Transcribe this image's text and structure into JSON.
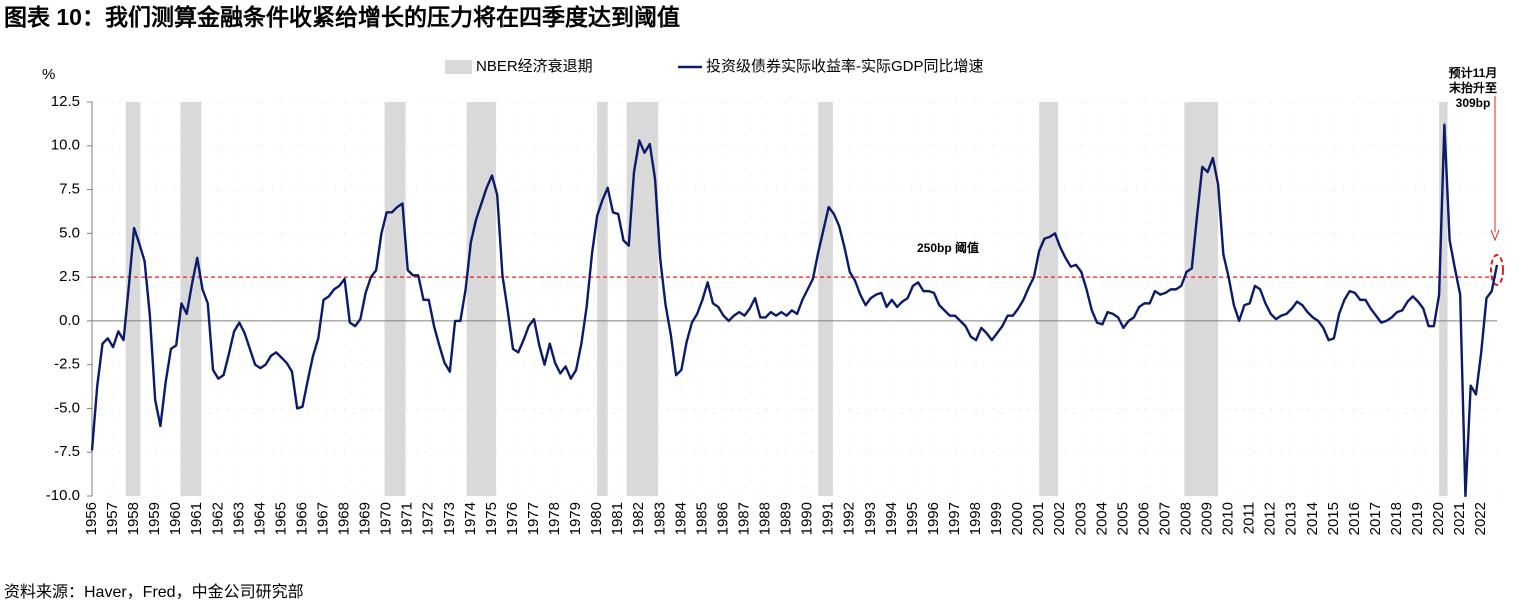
{
  "chart_data": {
    "type": "line",
    "title": "图表 10：我们测算金融条件收紧给增长的压力将在四季度达到阈值",
    "source": "资料来源：Haver，Fred，中金公司研究部",
    "y_unit": "%",
    "xlim": [
      1956,
      2022.75
    ],
    "ylim": [
      -10,
      12.5
    ],
    "yticks": [
      12.5,
      {
        "value": 10,
        "label": "10.0"
      },
      7.5,
      {
        "value": 5,
        "label": "5.0"
      },
      2.5,
      {
        "value": 0,
        "label": "0.0"
      },
      -2.5,
      {
        "value": -5,
        "label": "-5.0"
      },
      -7.5,
      {
        "value": -10,
        "label": "-10.0"
      }
    ],
    "xticks": [
      1956,
      1957,
      1958,
      1959,
      1960,
      1961,
      1962,
      1963,
      1964,
      1965,
      1966,
      1967,
      1968,
      1969,
      1970,
      1971,
      1972,
      1973,
      1974,
      1975,
      1976,
      1977,
      1978,
      1979,
      1980,
      1981,
      1982,
      1983,
      1984,
      1985,
      1986,
      1987,
      1988,
      1989,
      1990,
      1991,
      1992,
      1993,
      1994,
      1995,
      1996,
      1997,
      1998,
      1999,
      2000,
      2001,
      2002,
      2003,
      2004,
      2005,
      2006,
      2007,
      2008,
      2009,
      2010,
      2011,
      2012,
      2013,
      2014,
      2015,
      2016,
      2017,
      2018,
      2019,
      2020,
      2021,
      2022
    ],
    "grid": true,
    "legend": "top",
    "shading": {
      "name": "NBER经济衰退期",
      "color": "#d9d9d9",
      "spans": [
        [
          1957.6,
          1958.3
        ],
        [
          1960.2,
          1961.2
        ],
        [
          1969.9,
          1970.9
        ],
        [
          1973.8,
          1975.2
        ],
        [
          1980.0,
          1980.5
        ],
        [
          1981.4,
          1982.9
        ],
        [
          1990.5,
          1991.2
        ],
        [
          2001.0,
          2001.9
        ],
        [
          2007.9,
          2009.5
        ],
        [
          2020.0,
          2020.4
        ]
      ]
    },
    "threshold": {
      "value": 2.5,
      "color": "#e02020"
    },
    "annotations": [
      {
        "text": "250bp 阈值"
      },
      {
        "lines": [
          "预计11月",
          "末抬升至",
          "309bp"
        ]
      }
    ],
    "x": [
      1956,
      1956.25,
      1956.5,
      1956.75,
      1957,
      1957.25,
      1957.5,
      1957.75,
      1958,
      1958.25,
      1958.5,
      1958.75,
      1959,
      1959.25,
      1959.5,
      1959.75,
      1960,
      1960.25,
      1960.5,
      1960.75,
      1961,
      1961.25,
      1961.5,
      1961.75,
      1962,
      1962.25,
      1962.5,
      1962.75,
      1963,
      1963.25,
      1963.5,
      1963.75,
      1964,
      1964.25,
      1964.5,
      1964.75,
      1965,
      1965.25,
      1965.5,
      1965.75,
      1966,
      1966.25,
      1966.5,
      1966.75,
      1967,
      1967.25,
      1967.5,
      1967.75,
      1968,
      1968.25,
      1968.5,
      1968.75,
      1969,
      1969.25,
      1969.5,
      1969.75,
      1970,
      1970.25,
      1970.5,
      1970.75,
      1971,
      1971.25,
      1971.5,
      1971.75,
      1972,
      1972.25,
      1972.5,
      1972.75,
      1973,
      1973.25,
      1973.5,
      1973.75,
      1974,
      1974.25,
      1974.5,
      1974.75,
      1975,
      1975.25,
      1975.5,
      1975.75,
      1976,
      1976.25,
      1976.5,
      1976.75,
      1977,
      1977.25,
      1977.5,
      1977.75,
      1978,
      1978.25,
      1978.5,
      1978.75,
      1979,
      1979.25,
      1979.5,
      1979.75,
      1980,
      1980.25,
      1980.5,
      1980.75,
      1981,
      1981.25,
      1981.5,
      1981.75,
      1982,
      1982.25,
      1982.5,
      1982.75,
      1983,
      1983.25,
      1983.5,
      1983.75,
      1984,
      1984.25,
      1984.5,
      1984.75,
      1985,
      1985.25,
      1985.5,
      1985.75,
      1986,
      1986.25,
      1986.5,
      1986.75,
      1987,
      1987.25,
      1987.5,
      1987.75,
      1988,
      1988.25,
      1988.5,
      1988.75,
      1989,
      1989.25,
      1989.5,
      1989.75,
      1990,
      1990.25,
      1990.5,
      1990.75,
      1991,
      1991.25,
      1991.5,
      1991.75,
      1992,
      1992.25,
      1992.5,
      1992.75,
      1993,
      1993.25,
      1993.5,
      1993.75,
      1994,
      1994.25,
      1994.5,
      1994.75,
      1995,
      1995.25,
      1995.5,
      1995.75,
      1996,
      1996.25,
      1996.5,
      1996.75,
      1997,
      1997.25,
      1997.5,
      1997.75,
      1998,
      1998.25,
      1998.5,
      1998.75,
      1999,
      1999.25,
      1999.5,
      1999.75,
      2000,
      2000.25,
      2000.5,
      2000.75,
      2001,
      2001.25,
      2001.5,
      2001.75,
      2002,
      2002.25,
      2002.5,
      2002.75,
      2003,
      2003.25,
      2003.5,
      2003.75,
      2004,
      2004.25,
      2004.5,
      2004.75,
      2005,
      2005.25,
      2005.5,
      2005.75,
      2006,
      2006.25,
      2006.5,
      2006.75,
      2007,
      2007.25,
      2007.5,
      2007.75,
      2008,
      2008.25,
      2008.5,
      2008.75,
      2009,
      2009.25,
      2009.5,
      2009.75,
      2010,
      2010.25,
      2010.5,
      2010.75,
      2011,
      2011.25,
      2011.5,
      2011.75,
      2012,
      2012.25,
      2012.5,
      2012.75,
      2013,
      2013.25,
      2013.5,
      2013.75,
      2014,
      2014.25,
      2014.5,
      2014.75,
      2015,
      2015.25,
      2015.5,
      2015.75,
      2016,
      2016.25,
      2016.5,
      2016.75,
      2017,
      2017.25,
      2017.5,
      2017.75,
      2018,
      2018.25,
      2018.5,
      2018.75,
      2019,
      2019.25,
      2019.5,
      2019.75,
      2020,
      2020.25,
      2020.5,
      2020.75,
      2021,
      2021.25,
      2021.5,
      2021.75,
      2022,
      2022.25,
      2022.5,
      2022.75
    ],
    "series": [
      {
        "name": "投资级债券实际收益率-实际GDP同比增速",
        "color": "#0c1a6b",
        "values": [
          -7.4,
          -3.7,
          -1.3,
          -1.0,
          -1.5,
          -0.6,
          -1.1,
          2.0,
          5.3,
          4.4,
          3.4,
          0.3,
          -4.5,
          -6.0,
          -3.5,
          -1.6,
          -1.4,
          1.0,
          0.4,
          2.1,
          3.6,
          1.8,
          1.0,
          -2.8,
          -3.3,
          -3.1,
          -1.9,
          -0.6,
          -0.1,
          -0.7,
          -1.6,
          -2.5,
          -2.7,
          -2.5,
          -2.0,
          -1.8,
          -2.1,
          -2.4,
          -2.9,
          -5.0,
          -4.9,
          -3.4,
          -2.0,
          -1.0,
          1.2,
          1.4,
          1.8,
          2.0,
          2.4,
          -0.1,
          -0.3,
          0.1,
          1.6,
          2.5,
          2.9,
          5.0,
          6.2,
          6.2,
          6.5,
          6.7,
          2.9,
          2.6,
          2.6,
          1.2,
          1.2,
          -0.3,
          -1.4,
          -2.4,
          -2.9,
          0.0,
          0.0,
          1.8,
          4.5,
          5.8,
          6.7,
          7.6,
          8.3,
          7.2,
          2.6,
          0.6,
          -1.6,
          -1.8,
          -1.1,
          -0.3,
          0.1,
          -1.4,
          -2.5,
          -1.3,
          -2.4,
          -3.0,
          -2.6,
          -3.3,
          -2.8,
          -1.3,
          0.8,
          3.8,
          6.0,
          6.9,
          7.6,
          6.2,
          6.1,
          4.6,
          4.3,
          8.5,
          10.3,
          9.6,
          10.1,
          8.1,
          3.5,
          0.9,
          -0.8,
          -3.1,
          -2.8,
          -1.2,
          -0.1,
          0.4,
          1.2,
          2.2,
          1.0,
          0.8,
          0.3,
          0.0,
          0.3,
          0.5,
          0.3,
          0.7,
          1.3,
          0.2,
          0.2,
          0.5,
          0.3,
          0.5,
          0.3,
          0.6,
          0.4,
          1.2,
          1.8,
          2.4,
          3.9,
          5.2,
          6.5,
          6.1,
          5.4,
          4.2,
          2.8,
          2.3,
          1.5,
          0.9,
          1.3,
          1.5,
          1.6,
          0.8,
          1.2,
          0.8,
          1.1,
          1.3,
          2.0,
          2.2,
          1.7,
          1.7,
          1.6,
          0.9,
          0.6,
          0.3,
          0.3,
          0.0,
          -0.3,
          -0.9,
          -1.1,
          -0.4,
          -0.7,
          -1.1,
          -0.7,
          -0.3,
          0.3,
          0.3,
          0.7,
          1.2,
          1.9,
          2.5,
          4.0,
          4.7,
          4.8,
          5.0,
          4.2,
          3.6,
          3.1,
          3.2,
          2.8,
          1.8,
          0.6,
          -0.1,
          -0.2,
          0.5,
          0.4,
          0.2,
          -0.4,
          0.0,
          0.2,
          0.8,
          1.0,
          1.0,
          1.7,
          1.5,
          1.6,
          1.8,
          1.8,
          2.0,
          2.8,
          3.0,
          6.0,
          8.8,
          8.5,
          9.3,
          7.8,
          3.8,
          2.5,
          0.9,
          0.0,
          0.9,
          1.0,
          2.0,
          1.8,
          1.0,
          0.4,
          0.1,
          0.3,
          0.4,
          0.7,
          1.1,
          0.9,
          0.5,
          0.2,
          0.0,
          -0.4,
          -1.1,
          -1.0,
          0.4,
          1.2,
          1.7,
          1.6,
          1.2,
          1.2,
          0.7,
          0.3,
          -0.1,
          0.0,
          0.2,
          0.5,
          0.6,
          1.1,
          1.4,
          1.1,
          0.7,
          -0.3,
          -0.3,
          1.5,
          11.2,
          4.6,
          3.0,
          1.5,
          -10.0,
          -3.7,
          -4.2,
          -1.8,
          1.3,
          1.7,
          3.2
        ]
      }
    ]
  }
}
